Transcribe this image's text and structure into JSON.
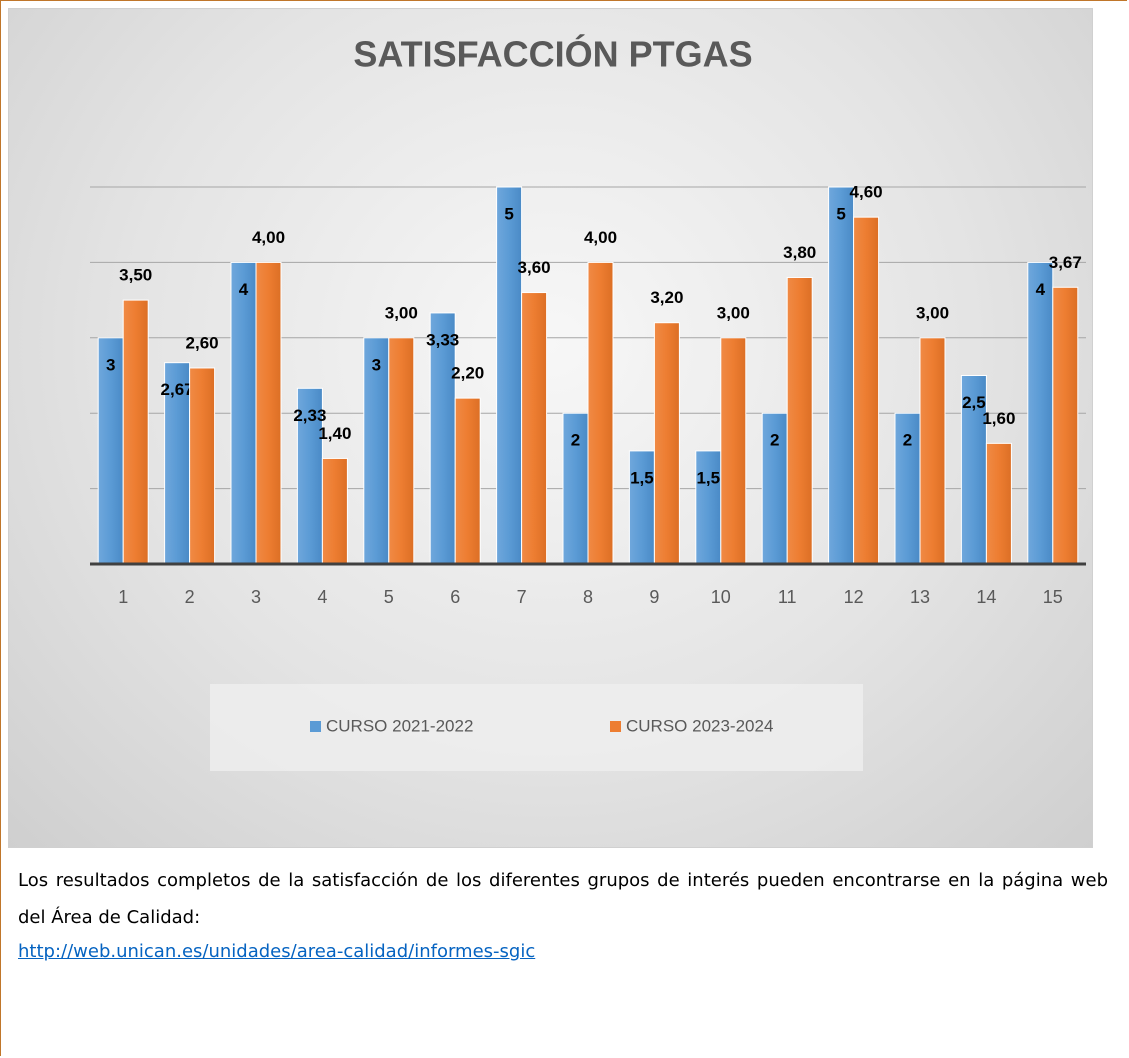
{
  "chart_data": {
    "type": "bar",
    "title": "SATISFACCIÓN PTGAS",
    "categories": [
      "1",
      "2",
      "3",
      "4",
      "5",
      "6",
      "7",
      "8",
      "9",
      "10",
      "11",
      "12",
      "13",
      "14",
      "15"
    ],
    "series": [
      {
        "name": "CURSO 2021-2022",
        "color": "#5b9bd5",
        "values": [
          3,
          2.67,
          4,
          2.33,
          3,
          3.33,
          5,
          2,
          1.5,
          1.5,
          2,
          5,
          2,
          2.5,
          4
        ],
        "value_labels": [
          "3",
          "2,67",
          "4",
          "2,33",
          "3",
          "3,33",
          "5",
          "2",
          "1,5",
          "1,5",
          "2",
          "5",
          "2",
          "2,5",
          "4"
        ]
      },
      {
        "name": "CURSO 2023-2024",
        "color": "#ed7d31",
        "values": [
          3.5,
          2.6,
          4,
          1.4,
          3,
          2.2,
          3.6,
          4,
          3.2,
          3,
          3.8,
          4.6,
          3,
          1.6,
          3.67
        ],
        "value_labels": [
          "3,50",
          "2,60",
          "4,00",
          "1,40",
          "3,00",
          "2,20",
          "3,60",
          "4,00",
          "3,20",
          "3,00",
          "3,80",
          "4,60",
          "3,00",
          "1,60",
          "3,67"
        ]
      }
    ],
    "ylim": [
      0,
      5
    ],
    "yticks": [
      0,
      1,
      2,
      3,
      4,
      5
    ],
    "grid": true,
    "legend": "bottom"
  },
  "text": {
    "paragraph": "Los resultados completos de la satisfacción de los diferentes grupos de interés pueden encontrarse en la página web del Área de Calidad:",
    "link": "http://web.unican.es/unidades/area-calidad/informes-sgic"
  }
}
